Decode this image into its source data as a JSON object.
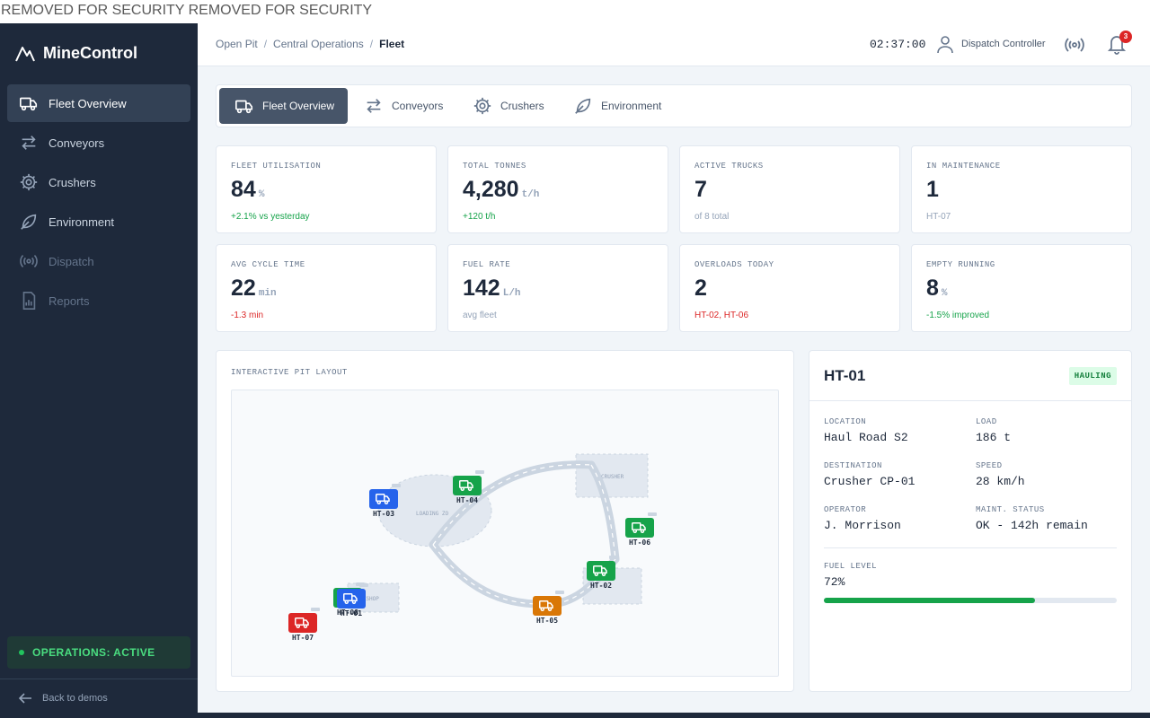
{
  "banner": "REMOVED FOR SECURITY REMOVED FOR SECURITY",
  "brand": "MineControl",
  "sidebar": {
    "items": [
      {
        "label": "Fleet Overview",
        "icon": "truck-icon"
      },
      {
        "label": "Conveyors",
        "icon": "transfer-icon"
      },
      {
        "label": "Crushers",
        "icon": "gear-icon"
      },
      {
        "label": "Environment",
        "icon": "leaf-icon"
      },
      {
        "label": "Dispatch",
        "icon": "broadcast-icon"
      },
      {
        "label": "Reports",
        "icon": "report-icon"
      }
    ],
    "ops_status": "OPERATIONS: ACTIVE",
    "back": "Back to demos"
  },
  "header": {
    "breadcrumb": [
      "Open Pit",
      "Central Operations",
      "Fleet"
    ],
    "clock": "02:37:00",
    "user": "Dispatch Controller",
    "notifications": "3"
  },
  "tabs": [
    "Fleet Overview",
    "Conveyors",
    "Crushers",
    "Environment"
  ],
  "kpis": [
    {
      "label": "FLEET UTILISATION",
      "value": "84",
      "unit": "%",
      "sub": "+2.1% vs yesterday"
    },
    {
      "label": "TOTAL TONNES",
      "value": "4,280",
      "unit": "t/h",
      "sub": "+120 t/h"
    },
    {
      "label": "ACTIVE TRUCKS",
      "value": "7",
      "unit": "",
      "sub": "of 8 total"
    },
    {
      "label": "IN MAINTENANCE",
      "value": "1",
      "unit": "",
      "sub": "HT-07"
    },
    {
      "label": "AVG CYCLE TIME",
      "value": "22",
      "unit": "min",
      "sub": "-1.3 min"
    },
    {
      "label": "FUEL RATE",
      "value": "142",
      "unit": "L/h",
      "sub": "avg fleet"
    },
    {
      "label": "OVERLOADS TODAY",
      "value": "2",
      "unit": "",
      "sub": "HT-02, HT-06"
    },
    {
      "label": "EMPTY RUNNING",
      "value": "8",
      "unit": "%",
      "sub": "-1.5% improved"
    }
  ],
  "pit": {
    "label": "INTERACTIVE PIT LAYOUT",
    "zones": {
      "loading": "LOADING ZO",
      "crusher": "CRUSHER",
      "workshop": "WORKSHOP"
    },
    "trucks": [
      {
        "id": "HT-03",
        "status": "blue"
      },
      {
        "id": "HT-04",
        "status": "green"
      },
      {
        "id": "HT-06",
        "status": "green"
      },
      {
        "id": "HT-02",
        "status": "green"
      },
      {
        "id": "HT-05",
        "status": "orange"
      },
      {
        "id": "HT-08",
        "status": "green"
      },
      {
        "id": "HT-01",
        "status": "blue"
      },
      {
        "id": "HT-07",
        "status": "red"
      }
    ]
  },
  "detail": {
    "title": "HT-01",
    "status": "HAULING",
    "location_label": "LOCATION",
    "location": "Haul Road S2",
    "load_label": "LOAD",
    "load": "186 t",
    "destination_label": "DESTINATION",
    "destination": "Crusher CP-01",
    "speed_label": "SPEED",
    "speed": "28 km/h",
    "operator_label": "OPERATOR",
    "operator": "J. Morrison",
    "maint_label": "MAINT. STATUS",
    "maint": "OK - 142h remain",
    "fuel_label": "FUEL LEVEL",
    "fuel": "72%",
    "fuel_fraction": 0.72
  },
  "colors": {
    "green": "#16a34a",
    "blue": "#2563eb",
    "orange": "#d97706",
    "red": "#dc2626"
  }
}
